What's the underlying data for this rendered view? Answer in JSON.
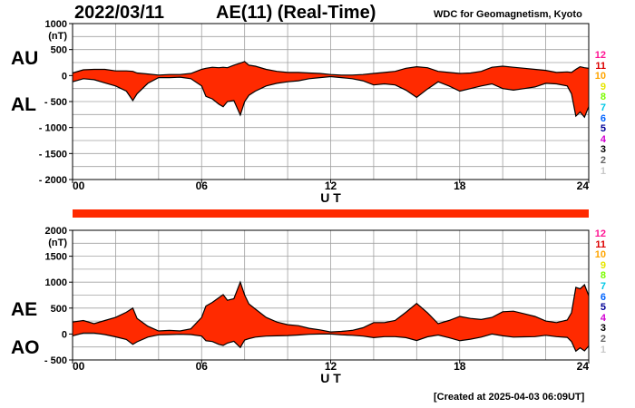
{
  "header": {
    "date": "2022/03/11",
    "title": "AE(11) (Real-Time)",
    "source": "WDC for Geomagnetism, Kyoto"
  },
  "footer": {
    "created": "[Created at 2025-04-03 06:09UT]"
  },
  "legend_levels": [
    "12",
    "11",
    "10",
    "9",
    "8",
    "7",
    "6",
    "5",
    "4",
    "3",
    "2",
    "1"
  ],
  "legend_colors": [
    "#ff1493",
    "#dc0000",
    "#ffa500",
    "#e6e600",
    "#7cfc00",
    "#00c8e6",
    "#0064ff",
    "#000096",
    "#d200d2",
    "#000000",
    "#646464",
    "#c8c8c8"
  ],
  "fill_color": "#ff2a00",
  "chart_data": [
    {
      "type": "area",
      "id": "au-al",
      "series_labels": [
        "AU",
        "AL"
      ],
      "yunit": "(nT)",
      "ylim": [
        -2000,
        1000
      ],
      "yticks": [
        1000,
        500,
        0,
        -500,
        -1000,
        -1500,
        -2000
      ],
      "ytick_labels": [
        "1000",
        "500",
        "0",
        "- 500",
        "- 1000",
        "- 1500",
        "- 2000"
      ],
      "xlim": [
        0,
        24
      ],
      "xticks": [
        0,
        6,
        12,
        18,
        24
      ],
      "xtick_labels": [
        "00",
        "06",
        "12",
        "18",
        "24"
      ],
      "xlabel": "U T",
      "grid": true,
      "x": [
        0,
        0.5,
        1,
        1.5,
        2,
        2.5,
        2.8,
        3,
        3.5,
        4,
        4.5,
        5,
        5.5,
        6,
        6.2,
        6.5,
        6.8,
        7,
        7.2,
        7.5,
        7.8,
        8,
        8.2,
        8.5,
        9,
        9.5,
        10,
        10.5,
        11,
        11.5,
        12,
        12.5,
        13,
        13.5,
        14,
        14.5,
        15,
        15.5,
        16,
        16.5,
        17,
        17.5,
        18,
        18.5,
        19,
        19.5,
        20,
        20.5,
        21,
        21.5,
        22,
        22.5,
        23,
        23.2,
        23.4,
        23.6,
        23.8,
        24
      ],
      "series": [
        {
          "name": "AU",
          "values": [
            50,
            110,
            120,
            120,
            90,
            90,
            80,
            50,
            30,
            10,
            20,
            20,
            40,
            120,
            140,
            160,
            150,
            160,
            150,
            200,
            240,
            270,
            200,
            180,
            120,
            80,
            60,
            60,
            50,
            40,
            20,
            10,
            10,
            20,
            40,
            60,
            80,
            140,
            170,
            150,
            80,
            60,
            40,
            50,
            80,
            160,
            180,
            160,
            140,
            120,
            100,
            60,
            70,
            60,
            120,
            170,
            150,
            140
          ]
        },
        {
          "name": "AL",
          "values": [
            -120,
            -60,
            -80,
            -140,
            -200,
            -300,
            -480,
            -350,
            -150,
            -40,
            -40,
            -30,
            -60,
            -200,
            -400,
            -450,
            -550,
            -600,
            -500,
            -480,
            -760,
            -500,
            -380,
            -300,
            -200,
            -150,
            -120,
            -100,
            -60,
            -40,
            -20,
            -40,
            -60,
            -100,
            -180,
            -160,
            -180,
            -280,
            -420,
            -260,
            -120,
            -200,
            -300,
            -250,
            -200,
            -160,
            -250,
            -280,
            -250,
            -220,
            -150,
            -160,
            -200,
            -350,
            -780,
            -700,
            -800,
            -600
          ]
        }
      ]
    },
    {
      "type": "area",
      "id": "ae-ao",
      "series_labels": [
        "AE",
        "AO"
      ],
      "yunit": "(nT)",
      "ylim": [
        -500,
        2000
      ],
      "yticks": [
        2000,
        1500,
        1000,
        500,
        0,
        -500
      ],
      "ytick_labels": [
        "2000",
        "1500",
        "1000",
        "500",
        "0",
        "- 500"
      ],
      "xlim": [
        0,
        24
      ],
      "xticks": [
        0,
        6,
        12,
        18,
        24
      ],
      "xtick_labels": [
        "00",
        "06",
        "12",
        "18",
        "24"
      ],
      "xlabel": "U T",
      "grid": true,
      "x": [
        0,
        0.5,
        1,
        1.5,
        2,
        2.5,
        2.8,
        3,
        3.5,
        4,
        4.5,
        5,
        5.5,
        6,
        6.2,
        6.5,
        6.8,
        7,
        7.2,
        7.5,
        7.8,
        8,
        8.2,
        8.5,
        9,
        9.5,
        10,
        10.5,
        11,
        11.5,
        12,
        12.5,
        13,
        13.5,
        14,
        14.5,
        15,
        15.5,
        16,
        16.5,
        17,
        17.5,
        18,
        18.5,
        19,
        19.5,
        20,
        20.5,
        21,
        21.5,
        22,
        22.5,
        23,
        23.2,
        23.4,
        23.6,
        23.8,
        24
      ],
      "series": [
        {
          "name": "AE",
          "values": [
            230,
            260,
            200,
            260,
            320,
            420,
            500,
            300,
            150,
            60,
            70,
            60,
            100,
            320,
            540,
            610,
            700,
            760,
            650,
            680,
            1000,
            750,
            580,
            480,
            320,
            230,
            180,
            160,
            110,
            80,
            40,
            50,
            70,
            120,
            220,
            220,
            260,
            420,
            590,
            410,
            200,
            260,
            340,
            300,
            280,
            320,
            430,
            440,
            390,
            340,
            250,
            220,
            270,
            410,
            900,
            870,
            950,
            740
          ]
        },
        {
          "name": "AO",
          "values": [
            -35,
            20,
            20,
            -10,
            -55,
            -105,
            -200,
            -150,
            -60,
            -15,
            -10,
            -5,
            -10,
            -40,
            -130,
            -145,
            -200,
            -220,
            -175,
            -140,
            -260,
            -115,
            -90,
            -60,
            -40,
            -35,
            -30,
            -20,
            -5,
            0,
            0,
            -15,
            -25,
            -40,
            -70,
            -50,
            -50,
            -70,
            -125,
            -55,
            -20,
            -70,
            -130,
            -100,
            -60,
            0,
            -35,
            -60,
            -55,
            -50,
            -25,
            -50,
            -65,
            -145,
            -330,
            -265,
            -325,
            -230
          ]
        }
      ]
    }
  ]
}
